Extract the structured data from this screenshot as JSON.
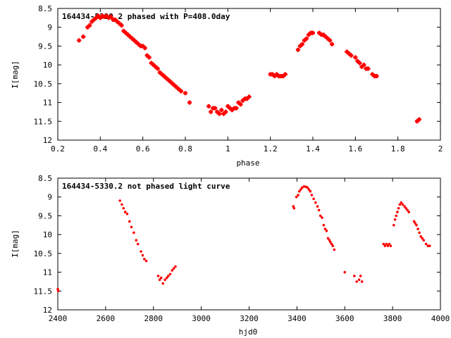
{
  "chart_data": [
    {
      "type": "scatter",
      "title": "164434-5330.2 phased with P=408.0day",
      "xlabel": "phase",
      "ylabel": "I[mag]",
      "xlim": [
        0.2,
        2.0
      ],
      "ylim": [
        12,
        8.5
      ],
      "y_inverted": true,
      "grid": false,
      "marker_color": "#ff0000",
      "marker": "cross",
      "xticks": [
        "0.2",
        "0.4",
        "0.6",
        "0.8",
        "1",
        "1.2",
        "1.4",
        "1.6",
        "1.8",
        "2"
      ],
      "yticks": [
        "8.5",
        "9",
        "9.5",
        "10",
        "10.5",
        "11",
        "11.5",
        "12"
      ],
      "points": [
        [
          0.3,
          9.35
        ],
        [
          0.32,
          9.25
        ],
        [
          0.34,
          9.0
        ],
        [
          0.35,
          8.95
        ],
        [
          0.36,
          8.85
        ],
        [
          0.37,
          8.8
        ],
        [
          0.38,
          8.75
        ],
        [
          0.39,
          8.7
        ],
        [
          0.4,
          8.75
        ],
        [
          0.41,
          8.7
        ],
        [
          0.42,
          8.72
        ],
        [
          0.43,
          8.7
        ],
        [
          0.44,
          8.75
        ],
        [
          0.45,
          8.72
        ],
        [
          0.46,
          8.8
        ],
        [
          0.47,
          8.8
        ],
        [
          0.48,
          8.85
        ],
        [
          0.49,
          8.9
        ],
        [
          0.5,
          8.95
        ],
        [
          0.51,
          9.1
        ],
        [
          0.52,
          9.15
        ],
        [
          0.53,
          9.2
        ],
        [
          0.54,
          9.25
        ],
        [
          0.55,
          9.3
        ],
        [
          0.56,
          9.35
        ],
        [
          0.57,
          9.4
        ],
        [
          0.58,
          9.45
        ],
        [
          0.59,
          9.5
        ],
        [
          0.6,
          9.5
        ],
        [
          0.61,
          9.55
        ],
        [
          0.62,
          9.75
        ],
        [
          0.63,
          9.8
        ],
        [
          0.64,
          9.95
        ],
        [
          0.65,
          10.0
        ],
        [
          0.66,
          10.05
        ],
        [
          0.67,
          10.1
        ],
        [
          0.68,
          10.2
        ],
        [
          0.69,
          10.25
        ],
        [
          0.7,
          10.3
        ],
        [
          0.71,
          10.35
        ],
        [
          0.72,
          10.4
        ],
        [
          0.73,
          10.45
        ],
        [
          0.74,
          10.5
        ],
        [
          0.75,
          10.55
        ],
        [
          0.76,
          10.6
        ],
        [
          0.77,
          10.65
        ],
        [
          0.78,
          10.7
        ],
        [
          0.8,
          10.75
        ],
        [
          0.82,
          11.0
        ],
        [
          0.91,
          11.1
        ],
        [
          0.92,
          11.25
        ],
        [
          0.93,
          11.15
        ],
        [
          0.94,
          11.15
        ],
        [
          0.95,
          11.25
        ],
        [
          0.96,
          11.3
        ],
        [
          0.97,
          11.2
        ],
        [
          0.98,
          11.3
        ],
        [
          0.99,
          11.25
        ],
        [
          1.0,
          11.1
        ],
        [
          1.01,
          11.15
        ],
        [
          1.02,
          11.2
        ],
        [
          1.03,
          11.15
        ],
        [
          1.04,
          11.15
        ],
        [
          1.05,
          11.0
        ],
        [
          1.06,
          11.05
        ],
        [
          1.07,
          10.95
        ],
        [
          1.08,
          10.9
        ],
        [
          1.09,
          10.9
        ],
        [
          1.1,
          10.85
        ],
        [
          1.2,
          10.25
        ],
        [
          1.21,
          10.25
        ],
        [
          1.22,
          10.3
        ],
        [
          1.23,
          10.25
        ],
        [
          1.24,
          10.3
        ],
        [
          1.25,
          10.3
        ],
        [
          1.26,
          10.3
        ],
        [
          1.27,
          10.25
        ],
        [
          1.33,
          9.6
        ],
        [
          1.34,
          9.5
        ],
        [
          1.35,
          9.45
        ],
        [
          1.36,
          9.35
        ],
        [
          1.37,
          9.3
        ],
        [
          1.38,
          9.2
        ],
        [
          1.39,
          9.15
        ],
        [
          1.4,
          9.15
        ],
        [
          1.43,
          9.15
        ],
        [
          1.44,
          9.2
        ],
        [
          1.45,
          9.2
        ],
        [
          1.46,
          9.25
        ],
        [
          1.47,
          9.3
        ],
        [
          1.48,
          9.35
        ],
        [
          1.49,
          9.45
        ],
        [
          1.56,
          9.65
        ],
        [
          1.57,
          9.7
        ],
        [
          1.58,
          9.75
        ],
        [
          1.6,
          9.8
        ],
        [
          1.61,
          9.9
        ],
        [
          1.62,
          9.95
        ],
        [
          1.63,
          10.05
        ],
        [
          1.64,
          10.0
        ],
        [
          1.65,
          10.1
        ],
        [
          1.66,
          10.1
        ],
        [
          1.68,
          10.25
        ],
        [
          1.69,
          10.3
        ],
        [
          1.7,
          10.3
        ],
        [
          1.89,
          11.5
        ],
        [
          1.9,
          11.45
        ]
      ]
    },
    {
      "type": "scatter",
      "title": "164434-5330.2 not phased light curve",
      "xlabel": "hjd0",
      "ylabel": "I[mag]",
      "xlim": [
        2400,
        4000
      ],
      "ylim": [
        12,
        8.5
      ],
      "y_inverted": true,
      "grid": false,
      "marker_color": "#ff0000",
      "marker": "dot",
      "xticks": [
        "2400",
        "2600",
        "2800",
        "3000",
        "3200",
        "3400",
        "3600",
        "3800",
        "4000"
      ],
      "yticks": [
        "8.5",
        "9",
        "9.5",
        "10",
        "10.5",
        "11",
        "11.5",
        "12"
      ],
      "points": [
        [
          2400,
          11.45
        ],
        [
          2402,
          11.5
        ],
        [
          2660,
          9.1
        ],
        [
          2668,
          9.2
        ],
        [
          2675,
          9.3
        ],
        [
          2682,
          9.4
        ],
        [
          2690,
          9.45
        ],
        [
          2700,
          9.65
        ],
        [
          2708,
          9.8
        ],
        [
          2718,
          9.95
        ],
        [
          2728,
          10.15
        ],
        [
          2735,
          10.25
        ],
        [
          2748,
          10.45
        ],
        [
          2755,
          10.55
        ],
        [
          2762,
          10.65
        ],
        [
          2770,
          10.7
        ],
        [
          2820,
          11.1
        ],
        [
          2826,
          11.2
        ],
        [
          2832,
          11.15
        ],
        [
          2840,
          11.3
        ],
        [
          2848,
          11.2
        ],
        [
          2856,
          11.15
        ],
        [
          2862,
          11.1
        ],
        [
          2870,
          11.05
        ],
        [
          2878,
          10.95
        ],
        [
          2885,
          10.9
        ],
        [
          2892,
          10.85
        ],
        [
          3385,
          9.25
        ],
        [
          3388,
          9.3
        ],
        [
          3398,
          9.0
        ],
        [
          3405,
          8.95
        ],
        [
          3410,
          8.85
        ],
        [
          3416,
          8.8
        ],
        [
          3422,
          8.75
        ],
        [
          3430,
          8.72
        ],
        [
          3437,
          8.73
        ],
        [
          3444,
          8.75
        ],
        [
          3450,
          8.8
        ],
        [
          3456,
          8.85
        ],
        [
          3462,
          8.95
        ],
        [
          3470,
          9.05
        ],
        [
          3478,
          9.15
        ],
        [
          3486,
          9.25
        ],
        [
          3492,
          9.35
        ],
        [
          3498,
          9.5
        ],
        [
          3505,
          9.55
        ],
        [
          3512,
          9.75
        ],
        [
          3518,
          9.85
        ],
        [
          3524,
          9.9
        ],
        [
          3530,
          10.1
        ],
        [
          3536,
          10.15
        ],
        [
          3540,
          10.2
        ],
        [
          3545,
          10.25
        ],
        [
          3550,
          10.3
        ],
        [
          3556,
          10.4
        ],
        [
          3600,
          11.0
        ],
        [
          3640,
          11.1
        ],
        [
          3650,
          11.25
        ],
        [
          3660,
          11.2
        ],
        [
          3666,
          11.1
        ],
        [
          3672,
          11.25
        ],
        [
          3762,
          10.25
        ],
        [
          3768,
          10.3
        ],
        [
          3774,
          10.25
        ],
        [
          3780,
          10.3
        ],
        [
          3786,
          10.25
        ],
        [
          3792,
          10.3
        ],
        [
          3805,
          9.75
        ],
        [
          3810,
          9.6
        ],
        [
          3815,
          9.5
        ],
        [
          3820,
          9.4
        ],
        [
          3825,
          9.3
        ],
        [
          3830,
          9.2
        ],
        [
          3836,
          9.15
        ],
        [
          3842,
          9.2
        ],
        [
          3850,
          9.25
        ],
        [
          3856,
          9.3
        ],
        [
          3862,
          9.35
        ],
        [
          3868,
          9.4
        ],
        [
          3890,
          9.65
        ],
        [
          3895,
          9.7
        ],
        [
          3900,
          9.75
        ],
        [
          3906,
          9.85
        ],
        [
          3912,
          9.95
        ],
        [
          3918,
          10.05
        ],
        [
          3924,
          10.1
        ],
        [
          3930,
          10.15
        ],
        [
          3940,
          10.25
        ],
        [
          3948,
          10.3
        ],
        [
          3955,
          10.3
        ]
      ]
    }
  ]
}
